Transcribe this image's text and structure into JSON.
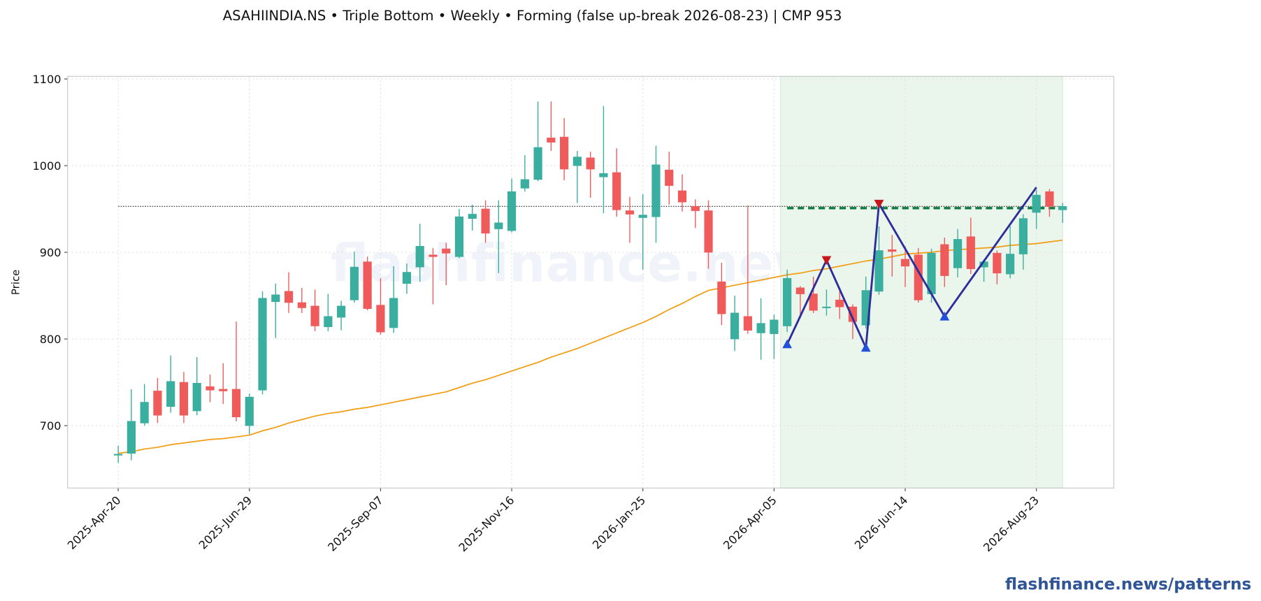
{
  "chart_data": {
    "type": "candlestick",
    "title": "ASAHIINDIA.NS  •  Triple Bottom  •  Weekly  •  Forming  (false up-break 2026-08-23)  |  CMP 953",
    "ylabel": "Price",
    "watermark": "flashfinance.news",
    "footer": "flashfinance.news/patterns",
    "x": [
      "2025-Apr-20",
      "2025-Apr-27",
      "2025-May-04",
      "2025-May-11",
      "2025-May-18",
      "2025-May-25",
      "2025-Jun-01",
      "2025-Jun-08",
      "2025-Jun-15",
      "2025-Jun-22",
      "2025-Jun-29",
      "2025-Jul-06",
      "2025-Jul-13",
      "2025-Jul-20",
      "2025-Jul-27",
      "2025-Aug-03",
      "2025-Aug-10",
      "2025-Aug-17",
      "2025-Aug-24",
      "2025-Aug-31",
      "2025-Sep-07",
      "2025-Sep-14",
      "2025-Sep-21",
      "2025-Sep-28",
      "2025-Oct-05",
      "2025-Oct-12",
      "2025-Oct-19",
      "2025-Oct-26",
      "2025-Nov-02",
      "2025-Nov-09",
      "2025-Nov-16",
      "2025-Nov-23",
      "2025-Nov-30",
      "2025-Dec-07",
      "2025-Dec-14",
      "2025-Dec-21",
      "2025-Dec-28",
      "2026-Jan-04",
      "2026-Jan-11",
      "2026-Jan-18",
      "2026-Jan-25",
      "2026-Feb-01",
      "2026-Feb-08",
      "2026-Feb-15",
      "2026-Feb-22",
      "2026-Mar-01",
      "2026-Mar-08",
      "2026-Mar-15",
      "2026-Mar-22",
      "2026-Mar-29",
      "2026-Apr-05",
      "2026-Apr-12",
      "2026-Apr-19",
      "2026-Apr-26",
      "2026-May-03",
      "2026-May-10",
      "2026-May-17",
      "2026-May-24",
      "2026-May-31",
      "2026-Jun-07",
      "2026-Jun-14",
      "2026-Jun-21",
      "2026-Jun-28",
      "2026-Jul-05",
      "2026-Jul-12",
      "2026-Jul-19",
      "2026-Jul-26",
      "2026-Aug-02",
      "2026-Aug-09",
      "2026-Aug-16",
      "2026-Aug-23",
      "2026-Aug-30",
      "2026-Sep-06"
    ],
    "open": [
      666,
      668,
      703,
      740,
      722,
      750,
      717,
      745,
      742,
      742,
      700,
      741,
      843,
      855,
      842,
      838,
      814,
      825,
      845,
      889,
      839,
      813,
      864,
      883,
      897,
      904,
      895,
      939,
      950,
      927,
      925,
      974,
      984,
      1032,
      1033,
      1000,
      1009,
      987,
      992,
      948,
      940,
      941,
      995,
      971,
      953,
      948,
      866,
      800,
      826,
      807,
      806,
      815,
      859,
      852,
      836,
      845,
      837,
      816,
      855,
      903,
      892,
      897,
      852,
      909,
      882,
      918,
      883,
      899,
      875,
      898,
      946,
      970,
      949
    ],
    "high": [
      677,
      742,
      748,
      755,
      781,
      762,
      779,
      759,
      772,
      820,
      737,
      855,
      864,
      877,
      859,
      857,
      852,
      844,
      901,
      895,
      870,
      884,
      887,
      933,
      905,
      911,
      950,
      955,
      960,
      960,
      985,
      1012,
      1074,
      1074,
      1055,
      1017,
      1016,
      1069,
      1020,
      964,
      967,
      1023,
      1016,
      990,
      961,
      960,
      888,
      850,
      954,
      847,
      828,
      880,
      861,
      872,
      857,
      855,
      840,
      872,
      930,
      920,
      907,
      905,
      904,
      917,
      927,
      940,
      892,
      902,
      930,
      944,
      972,
      973,
      957
    ],
    "low": [
      657,
      660,
      700,
      703,
      715,
      703,
      712,
      727,
      725,
      705,
      690,
      736,
      801,
      830,
      830,
      809,
      809,
      810,
      842,
      833,
      805,
      807,
      852,
      866,
      840,
      862,
      893,
      925,
      911,
      876,
      923,
      970,
      982,
      1017,
      983,
      957,
      963,
      945,
      941,
      911,
      880,
      911,
      955,
      947,
      928,
      881,
      816,
      786,
      806,
      776,
      777,
      808,
      824,
      830,
      827,
      823,
      800,
      812,
      851,
      872,
      860,
      842,
      842,
      860,
      871,
      875,
      866,
      863,
      870,
      880,
      927,
      941,
      934
    ],
    "close": [
      667,
      705,
      727,
      712,
      751,
      712,
      749,
      741,
      740,
      710,
      733,
      847,
      851,
      842,
      836,
      815,
      826,
      838,
      883,
      835,
      808,
      847,
      877,
      907,
      895,
      899,
      941,
      944,
      922,
      934,
      970,
      984,
      1021,
      1027,
      996,
      1010,
      996,
      991,
      949,
      944,
      943,
      1001,
      977,
      958,
      948,
      900,
      829,
      830,
      810,
      818,
      822,
      870,
      852,
      833,
      837,
      837,
      820,
      856,
      902,
      901,
      884,
      845,
      899,
      873,
      915,
      881,
      889,
      876,
      898,
      939,
      966,
      953,
      953
    ],
    "up_color": "#3aae9f",
    "down_color": "#ef5b5b",
    "ma": {
      "color": "#f29c11",
      "values": [
        668,
        670,
        673,
        675,
        678,
        680,
        682,
        684,
        685,
        687,
        689,
        694,
        698,
        703,
        707,
        711,
        714,
        716,
        719,
        721,
        724,
        727,
        730,
        733,
        736,
        739,
        744,
        749,
        753,
        758,
        763,
        768,
        773,
        779,
        784,
        789,
        795,
        801,
        807,
        813,
        819,
        826,
        834,
        841,
        849,
        856,
        859,
        862,
        865,
        868,
        871,
        874,
        876,
        879,
        881,
        884,
        887,
        890,
        892,
        895,
        898,
        899,
        900,
        902,
        903,
        904,
        905,
        906,
        908,
        909,
        910,
        912,
        914
      ]
    },
    "pattern_window": [
      "2026-Apr-12",
      "2026-Sep-06"
    ],
    "zigzag": {
      "color": "#2e2e9a",
      "x": [
        "2026-Apr-12",
        "2026-May-03",
        "2026-May-24",
        "2026-May-31",
        "2026-Jul-05",
        "2026-Aug-23"
      ],
      "values": [
        794,
        891,
        790,
        956,
        826,
        975
      ]
    },
    "resistance": {
      "value": 951,
      "color": "#0c7a41"
    },
    "cmp_line": 953,
    "ylim": [
      628,
      1103
    ],
    "yticks": [
      700,
      800,
      900,
      1000,
      1100
    ],
    "xticks": [
      "2025-Apr-20",
      "2025-Jun-29",
      "2025-Sep-07",
      "2025-Nov-16",
      "2026-Jan-25",
      "2026-Apr-05",
      "2026-Jun-14",
      "2026-Aug-23"
    ],
    "grid": true
  }
}
